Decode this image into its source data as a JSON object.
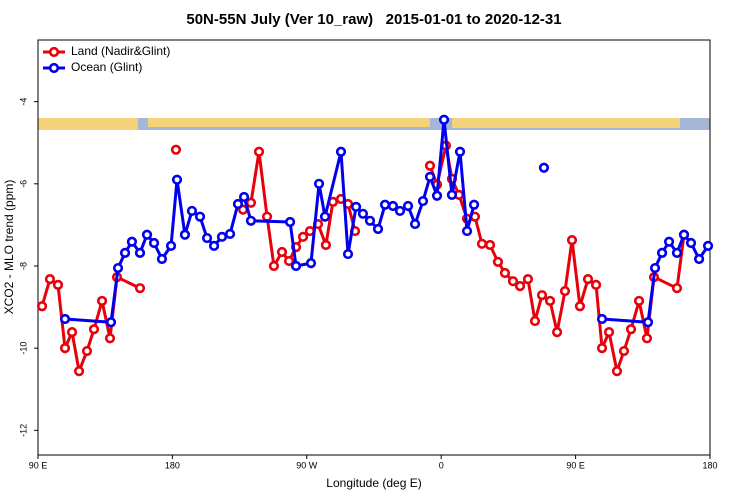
{
  "chart_data": {
    "type": "line",
    "title": "50N-55N July (Ver 10_raw)   2015-01-01 to 2020-12-31",
    "xlabel": "Longitude (deg E)",
    "ylabel": "XCO2 - MLO trend (ppm)",
    "xlim": [
      90,
      540
    ],
    "xticks": [
      {
        "value": 90,
        "label": "90 E"
      },
      {
        "value": 180,
        "label": "180"
      },
      {
        "value": 270,
        "label": "90 W"
      },
      {
        "value": 360,
        "label": "0"
      },
      {
        "value": 450,
        "label": "90 E"
      },
      {
        "value": 540,
        "label": "180"
      }
    ],
    "ylim": [
      -12.6,
      -2.5
    ],
    "yticks": [
      -4,
      -6,
      -8,
      -10,
      -12
    ],
    "legend": "top-left",
    "series": [
      {
        "name": "Land (Nadir&Glint)",
        "color": "#e8000b",
        "x": [
          92.7,
          98.0,
          103.4,
          108.1,
          112.8,
          117.5,
          122.8,
          127.5,
          132.9,
          138.2,
          142.9,
          158.3,
          null,
          182.4,
          null,
          227.3,
          232.6,
          238.0,
          243.4,
          248.0,
          253.4,
          258.1,
          262.8,
          267.5,
          272.1,
          277.5,
          282.8,
          287.5,
          292.9,
          297.6,
          302.3,
          null,
          352.5,
          357.2,
          363.2,
          367.2,
          371.9,
          377.3,
          382.6,
          387.3,
          392.7,
          398.0,
          402.7,
          408.1,
          412.8,
          418.1,
          422.8,
          427.5,
          432.9,
          437.6,
          442.9,
          447.6,
          452.9,
          458.3,
          463.7,
          467.7,
          472.4,
          477.7,
          482.4,
          487.1,
          492.5,
          497.8,
          502.5,
          517.9,
          522.6
        ],
        "values": [
          -8.98,
          -8.32,
          -8.46,
          -10.0,
          -9.61,
          -10.56,
          -10.07,
          -9.54,
          -8.85,
          -9.76,
          -8.27,
          -8.54,
          null,
          -5.17,
          null,
          -6.63,
          -6.46,
          -5.22,
          -6.8,
          -8.0,
          -7.66,
          -7.88,
          -7.54,
          -7.29,
          -7.15,
          -6.98,
          -7.49,
          -6.44,
          -6.37,
          -6.49,
          -7.15,
          null,
          -5.56,
          -6.02,
          -5.07,
          -5.88,
          -6.27,
          -6.85,
          -6.8,
          -7.46,
          -7.49,
          -7.9,
          -8.17,
          -8.37,
          -8.49,
          -8.32,
          -9.34,
          -8.71,
          -8.85,
          -9.61,
          -8.61,
          -7.37,
          -8.98,
          -8.32,
          -8.46,
          -10.0,
          -9.61,
          -10.56,
          -10.07,
          -9.54,
          -8.85,
          -9.76,
          -8.27,
          -8.54,
          -7.24
        ]
      },
      {
        "name": "Ocean (Glint)",
        "color": "#0000ee",
        "x": [
          108.1,
          138.9,
          143.6,
          148.3,
          152.9,
          158.3,
          163.0,
          167.7,
          173.0,
          179.1,
          183.1,
          188.4,
          193.1,
          198.5,
          203.2,
          207.9,
          213.2,
          218.6,
          223.9,
          228.0,
          232.6,
          258.8,
          262.8,
          272.8,
          278.2,
          282.2,
          292.9,
          297.6,
          303.0,
          307.6,
          312.3,
          317.7,
          322.4,
          327.7,
          332.4,
          337.8,
          342.5,
          347.8,
          352.5,
          357.2,
          361.9,
          367.2,
          372.6,
          377.3,
          382.0,
          null,
          428.8,
          null,
          467.7,
          498.5,
          503.2,
          507.9,
          512.6,
          517.9,
          522.6,
          527.3,
          532.7,
          538.7
        ],
        "values": [
          -9.29,
          -9.37,
          -8.05,
          -7.68,
          -7.41,
          -7.68,
          -7.24,
          -7.44,
          -7.83,
          -7.51,
          -5.9,
          -7.24,
          -6.66,
          -6.8,
          -7.32,
          -7.51,
          -7.29,
          -7.22,
          -6.49,
          -6.32,
          -6.9,
          -6.93,
          -8.0,
          -7.93,
          -6.0,
          -6.8,
          -5.22,
          -7.71,
          -6.56,
          -6.73,
          -6.9,
          -7.1,
          -6.51,
          -6.54,
          -6.66,
          -6.54,
          -6.98,
          -6.42,
          -5.83,
          -6.29,
          -4.44,
          -6.27,
          -5.22,
          -7.15,
          -6.51,
          null,
          -5.61,
          null,
          -9.29,
          -9.37,
          -8.05,
          -7.68,
          -7.41,
          -7.68,
          -7.24,
          -7.44,
          -7.83,
          -7.51
        ]
      }
    ]
  }
}
